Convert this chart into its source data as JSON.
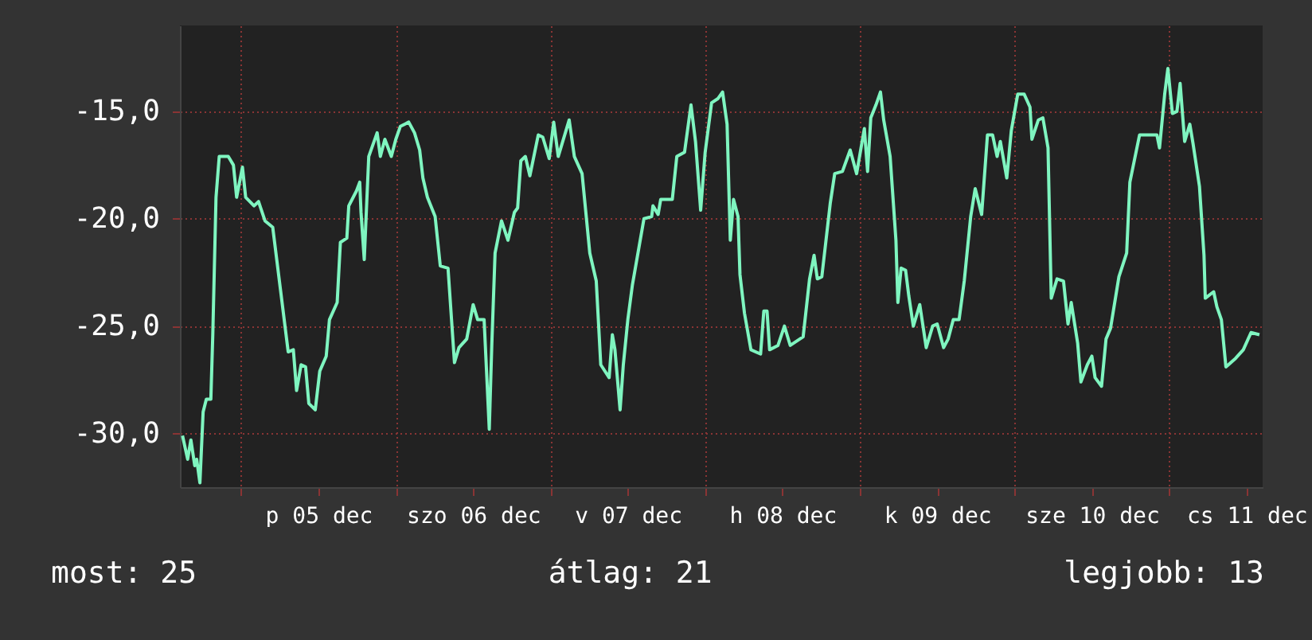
{
  "chart_data": {
    "type": "line",
    "color": "#7ff5c0",
    "grid": true,
    "xlim": [
      "--12-04T14:30",
      "--12-11T14:30"
    ],
    "ylim": [
      -32.5,
      -11
    ],
    "xticks": [
      {
        "value": "--12-05T00:00",
        "label": null
      },
      {
        "value": "--12-05T12:00",
        "label": "p 05 dec"
      },
      {
        "value": "--12-06T00:00",
        "label": null
      },
      {
        "value": "--12-06T12:00",
        "label": "szo 06 dec"
      },
      {
        "value": "--12-07T00:00",
        "label": null
      },
      {
        "value": "--12-07T12:00",
        "label": "v 07 dec"
      },
      {
        "value": "--12-08T00:00",
        "label": null
      },
      {
        "value": "--12-08T12:00",
        "label": "h 08 dec"
      },
      {
        "value": "--12-09T00:00",
        "label": null
      },
      {
        "value": "--12-09T12:00",
        "label": "k 09 dec"
      },
      {
        "value": "--12-10T00:00",
        "label": null
      },
      {
        "value": "--12-10T12:00",
        "label": "sze 10 dec"
      },
      {
        "value": "--12-11T00:00",
        "label": null
      },
      {
        "value": "--12-11T12:00",
        "label": "cs 11 dec"
      }
    ],
    "yticks": [
      {
        "value": -30,
        "label": "-30,0"
      },
      {
        "value": -25,
        "label": "-25,0"
      },
      {
        "value": -20,
        "label": "-20,0"
      },
      {
        "value": -15,
        "label": "-15,0"
      }
    ],
    "annotations": [
      "most: 25",
      "átlag: 21",
      "legjobb: 13"
    ],
    "x": [
      "--12-04T14:54",
      "--12-04T15:42",
      "--12-04T16:12",
      "--12-04T16:48",
      "--12-04T17:06",
      "--12-04T17:36",
      "--12-04T18:06",
      "--12-04T18:36",
      "--12-04T19:18",
      "--12-04T19:36",
      "--12-04T20:06",
      "--12-04T20:36",
      "--12-04T22:00",
      "--12-04T22:48",
      "--12-04T23:18",
      "--12-05T00:12",
      "--12-05T00:42",
      "--12-05T02:00",
      "--12-05T02:42",
      "--12-05T03:42",
      "--12-05T04:54",
      "--12-05T06:06",
      "--12-05T07:18",
      "--12-05T08:06",
      "--12-05T08:36",
      "--12-05T09:18",
      "--12-05T10:00",
      "--12-05T10:30",
      "--12-05T11:30",
      "--12-05T12:12",
      "--12-05T13:12",
      "--12-05T13:42",
      "--12-05T14:54",
      "--12-05T15:24",
      "--12-05T16:24",
      "--12-05T16:42",
      "--12-05T17:54",
      "--12-05T18:24",
      "--12-05T18:36",
      "--12-05T19:06",
      "--12-05T19:48",
      "--12-05T21:06",
      "--12-05T21:36",
      "--12-05T22:18",
      "--12-05T23:18",
      "--12-06T00:00",
      "--12-06T00:42",
      "--12-06T02:00",
      "--12-06T02:54",
      "--12-06T03:42",
      "--12-06T04:12",
      "--12-06T04:54",
      "--12-06T06:06",
      "--12-06T06:54",
      "--12-06T08:06",
      "--12-06T09:06",
      "--12-06T09:48",
      "--12-06T11:00",
      "--12-06T12:00",
      "--12-06T12:42",
      "--12-06T13:42",
      "--12-06T14:30",
      "--12-06T14:54",
      "--12-06T15:24",
      "--12-06T16:24",
      "--12-06T17:24",
      "--12-06T18:24",
      "--12-06T18:54",
      "--12-06T19:24",
      "--12-06T20:06",
      "--12-06T20:48",
      "--12-06T22:06",
      "--12-06T22:48",
      "--12-06T23:48",
      "--12-07T00:30",
      "--12-07T01:12",
      "--12-07T02:12",
      "--12-07T02:54",
      "--12-07T03:42",
      "--12-07T04:54",
      "--12-07T06:06",
      "--12-07T07:06",
      "--12-07T07:48",
      "--12-07T09:06",
      "--12-07T09:36",
      "--12-07T10:00",
      "--12-07T10:48",
      "--12-07T11:18",
      "--12-07T12:00",
      "--12-07T12:42",
      "--12-07T14:30",
      "--12-07T15:42",
      "--12-07T15:54",
      "--12-07T16:42",
      "--12-07T17:06",
      "--12-07T18:54",
      "--12-07T19:36",
      "--12-07T20:48",
      "--12-07T21:48",
      "--12-07T22:30",
      "--12-07T23:18",
      "--12-08T00:00",
      "--12-08T01:00",
      "--12-08T02:00",
      "--12-08T02:42",
      "--12-08T03:24",
      "--12-08T03:54",
      "--12-08T04:24",
      "--12-08T05:06",
      "--12-08T05:24",
      "--12-08T06:06",
      "--12-08T07:06",
      "--12-08T08:36",
      "--12-08T09:06",
      "--12-08T09:36",
      "--12-08T10:00",
      "--12-08T11:18",
      "--12-08T12:18",
      "--12-08T13:12",
      "--12-08T15:12",
      "--12-08T16:12",
      "--12-08T16:54",
      "--12-08T17:24",
      "--12-08T18:06",
      "--12-08T19:24",
      "--12-08T20:06",
      "--12-08T21:18",
      "--12-08T22:30",
      "--12-08T23:30",
      "--12-09T00:42",
      "--12-09T01:12",
      "--12-09T01:42",
      "--12-09T02:30",
      "--12-09T03:12",
      "--12-09T03:42",
      "--12-09T04:42",
      "--12-09T05:36",
      "--12-09T05:54",
      "--12-09T06:24",
      "--12-09T07:06",
      "--12-09T07:36",
      "--12-09T08:18",
      "--12-09T09:18",
      "--12-09T10:18",
      "--12-09T11:18",
      "--12-09T12:00",
      "--12-09T13:00",
      "--12-09T13:42",
      "--12-09T14:30",
      "--12-09T15:24",
      "--12-09T16:12",
      "--12-09T17:12",
      "--12-09T17:54",
      "--12-09T18:54",
      "--12-09T19:48",
      "--12-09T20:36",
      "--12-09T21:18",
      "--12-09T21:48",
      "--12-09T22:48",
      "--12-09T23:30",
      "--12-10T00:30",
      "--12-10T01:30",
      "--12-10T02:24",
      "--12-10T02:42",
      "--12-10T03:42",
      "--12-10T04:24",
      "--12-10T05:12",
      "--12-10T05:42",
      "--12-10T06:36",
      "--12-10T07:36",
      "--12-10T08:18",
      "--12-10T08:48",
      "--12-10T09:48",
      "--12-10T10:18",
      "--12-10T11:18",
      "--12-10T12:00",
      "--12-10T12:30",
      "--12-10T13:30",
      "--12-10T14:12",
      "--12-10T14:54",
      "--12-10T16:12",
      "--12-10T17:24",
      "--12-10T17:54",
      "--12-10T19:24",
      "--12-10T22:06",
      "--12-10T22:30",
      "--12-10T23:18",
      "--12-10T23:48",
      "--12-11T00:30",
      "--12-11T01:12",
      "--12-11T01:42",
      "--12-11T02:24",
      "--12-11T03:12",
      "--12-11T03:42",
      "--12-11T04:42",
      "--12-11T05:24",
      "--12-11T05:36",
      "--12-11T06:54",
      "--12-11T07:24",
      "--12-11T08:06",
      "--12-11T08:48",
      "--12-11T10:18",
      "--12-11T11:30",
      "--12-11T12:42",
      "--12-11T14:00"
    ],
    "values": [
      -30.1,
      -31.2,
      -30.3,
      -31.5,
      -31.2,
      -32.3,
      -29.0,
      -28.4,
      -28.4,
      -25.4,
      -19.0,
      -17.1,
      -17.1,
      -17.5,
      -19.0,
      -17.6,
      -19.0,
      -19.4,
      -19.2,
      -20.1,
      -20.4,
      -23.3,
      -26.2,
      -26.1,
      -28.0,
      -26.8,
      -26.9,
      -28.6,
      -28.9,
      -27.1,
      -26.4,
      -24.7,
      -23.9,
      -21.1,
      -20.9,
      -19.4,
      -18.7,
      -18.3,
      -19.7,
      -21.9,
      -17.1,
      -16.0,
      -17.1,
      -16.3,
      -17.1,
      -16.3,
      -15.7,
      -15.5,
      -16.0,
      -16.8,
      -18.1,
      -19.0,
      -19.9,
      -22.2,
      -22.3,
      -26.7,
      -26.0,
      -25.6,
      -24.0,
      -24.7,
      -24.7,
      -29.8,
      -25.8,
      -21.6,
      -20.1,
      -21.0,
      -19.7,
      -19.5,
      -17.3,
      -17.1,
      -18.0,
      -16.1,
      -16.2,
      -17.2,
      -15.5,
      -17.1,
      -16.1,
      -15.4,
      -17.1,
      -17.9,
      -21.6,
      -22.9,
      -26.8,
      -27.4,
      -25.4,
      -26.1,
      -28.9,
      -26.8,
      -24.7,
      -23.1,
      -20.0,
      -19.9,
      -19.4,
      -19.8,
      -19.1,
      -19.1,
      -17.1,
      -16.9,
      -14.7,
      -16.4,
      -19.6,
      -16.9,
      -14.6,
      -14.4,
      -14.1,
      -15.6,
      -21.0,
      -19.1,
      -19.9,
      -22.6,
      -24.4,
      -26.1,
      -26.3,
      -24.3,
      -24.3,
      -26.1,
      -25.9,
      -25.0,
      -25.9,
      -25.5,
      -22.8,
      -21.7,
      -22.8,
      -22.7,
      -19.3,
      -17.9,
      -17.8,
      -16.8,
      -17.9,
      -15.8,
      -17.8,
      -15.3,
      -14.7,
      -14.1,
      -15.4,
      -17.1,
      -21.0,
      -23.9,
      -22.3,
      -22.4,
      -23.6,
      -25.0,
      -24.0,
      -26.0,
      -25.0,
      -24.9,
      -26.0,
      -25.6,
      -24.7,
      -24.7,
      -22.9,
      -19.9,
      -18.6,
      -19.8,
      -16.1,
      -16.1,
      -17.1,
      -16.4,
      -18.1,
      -15.9,
      -14.2,
      -14.2,
      -14.8,
      -16.3,
      -15.4,
      -15.3,
      -16.7,
      -23.7,
      -22.8,
      -22.9,
      -24.9,
      -23.9,
      -25.8,
      -27.6,
      -26.8,
      -26.4,
      -27.4,
      -27.8,
      -25.6,
      -25.1,
      -22.7,
      -21.6,
      -18.3,
      -16.1,
      -16.1,
      -16.7,
      -14.2,
      -13.0,
      -15.1,
      -15.0,
      -13.7,
      -16.4,
      -15.6,
      -16.5,
      -18.5,
      -21.7,
      -23.7,
      -23.4,
      -24.1,
      -24.7,
      -26.9,
      -26.5,
      -26.1,
      -25.3,
      -25.4
    ]
  }
}
